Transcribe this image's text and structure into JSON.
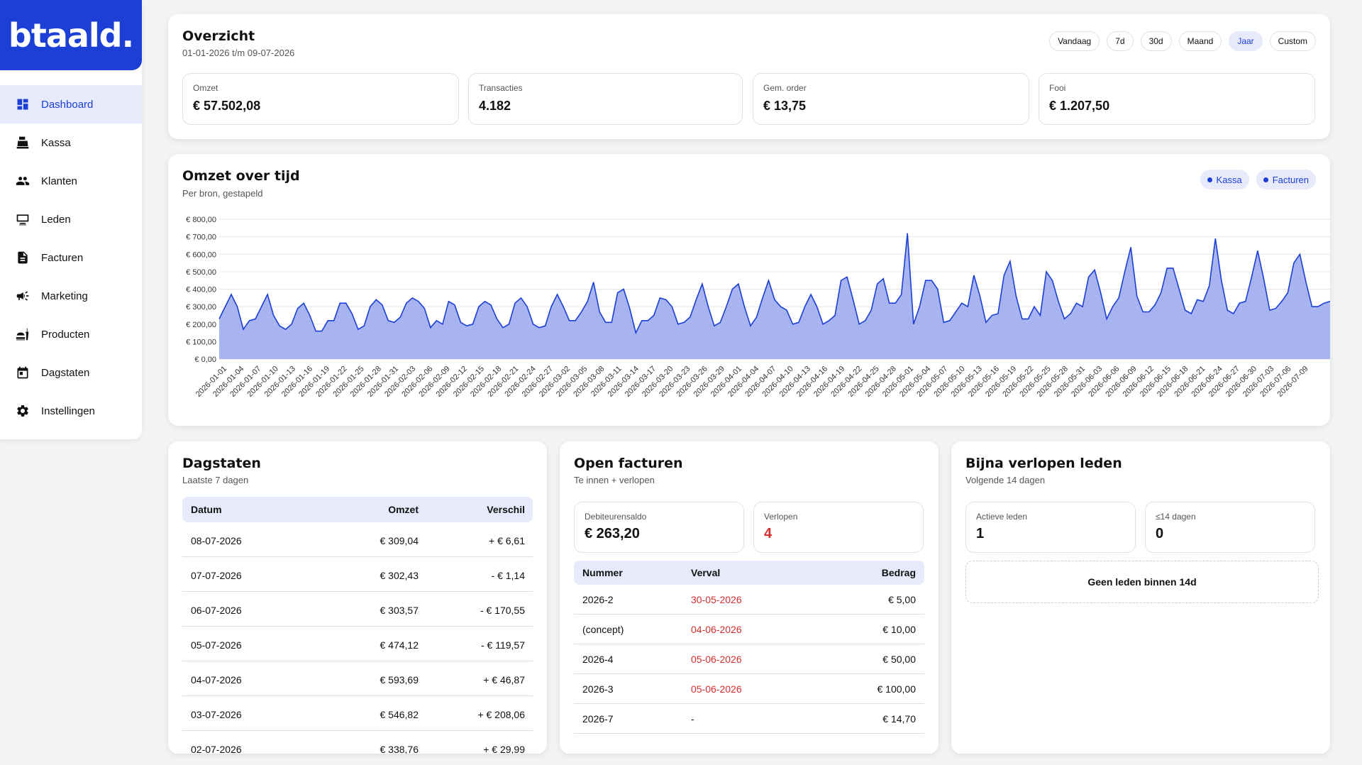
{
  "logo": "btaald.",
  "sidebar": {
    "items": [
      {
        "label": "Dashboard",
        "icon": "dashboard-icon",
        "active": true
      },
      {
        "label": "Kassa",
        "icon": "cash-register-icon"
      },
      {
        "label": "Klanten",
        "icon": "people-icon"
      },
      {
        "label": "Leden",
        "icon": "membership-card-icon"
      },
      {
        "label": "Facturen",
        "icon": "document-icon"
      },
      {
        "label": "Marketing",
        "icon": "megaphone-icon"
      },
      {
        "label": "Producten",
        "icon": "food-icon"
      },
      {
        "label": "Dagstaten",
        "icon": "calendar-icon"
      },
      {
        "label": "Instellingen",
        "icon": "gear-icon"
      }
    ]
  },
  "overview": {
    "title": "Overzicht",
    "range": "01-01-2026 t/m 09-07-2026",
    "periods": [
      "Vandaag",
      "7d",
      "30d",
      "Maand",
      "Jaar",
      "Custom"
    ],
    "active_period": "Jaar",
    "kpis": [
      {
        "label": "Omzet",
        "value": "€ 57.502,08"
      },
      {
        "label": "Transacties",
        "value": "4.182"
      },
      {
        "label": "Gem. order",
        "value": "€ 13,75"
      },
      {
        "label": "Fooi",
        "value": "€ 1.207,50"
      }
    ]
  },
  "revenue_chart": {
    "title": "Omzet over tijd",
    "subtitle": "Per bron, gestapeld",
    "legend": [
      "Kassa",
      "Facturen"
    ],
    "colors": {
      "line": "#1c3fd6",
      "fill": "#a7b4f0"
    }
  },
  "chart_data": {
    "type": "area",
    "stacked": true,
    "ylim": [
      0,
      800
    ],
    "yticks": [
      "€ 800,00",
      "€ 700,00",
      "€ 600,00",
      "€ 500,00",
      "€ 400,00",
      "€ 300,00",
      "€ 200,00",
      "€ 100,00",
      "€ 0,00"
    ],
    "x_labels": [
      "2026-01-01",
      "2026-01-04",
      "2026-01-07",
      "2026-01-10",
      "2026-01-13",
      "2026-01-16",
      "2026-01-19",
      "2026-01-22",
      "2026-01-25",
      "2026-01-28",
      "2026-01-31",
      "2026-02-03",
      "2026-02-06",
      "2026-02-09",
      "2026-02-12",
      "2026-02-15",
      "2026-02-18",
      "2026-02-21",
      "2026-02-24",
      "2026-02-27",
      "2026-03-02",
      "2026-03-05",
      "2026-03-08",
      "2026-03-11",
      "2026-03-14",
      "2026-03-17",
      "2026-03-20",
      "2026-03-23",
      "2026-03-26",
      "2026-03-29",
      "2026-04-01",
      "2026-04-04",
      "2026-04-07",
      "2026-04-10",
      "2026-04-13",
      "2026-04-16",
      "2026-04-19",
      "2026-04-22",
      "2026-04-25",
      "2026-04-28",
      "2026-05-01",
      "2026-05-04",
      "2026-05-07",
      "2026-05-10",
      "2026-05-13",
      "2026-05-16",
      "2026-05-19",
      "2026-05-22",
      "2026-05-25",
      "2026-05-28",
      "2026-05-31",
      "2026-06-03",
      "2026-06-06",
      "2026-06-09",
      "2026-06-12",
      "2026-06-15",
      "2026-06-18",
      "2026-06-21",
      "2026-06-24",
      "2026-06-27",
      "2026-06-30",
      "2026-07-03",
      "2026-07-06",
      "2026-07-09"
    ],
    "series": [
      {
        "name": "Kassa",
        "values": [
          230,
          300,
          370,
          300,
          170,
          220,
          230,
          300,
          370,
          250,
          190,
          170,
          200,
          290,
          320,
          250,
          160,
          160,
          220,
          220,
          320,
          320,
          260,
          170,
          190,
          300,
          340,
          310,
          220,
          210,
          240,
          320,
          350,
          330,
          290,
          180,
          220,
          200,
          330,
          310,
          210,
          190,
          200,
          300,
          330,
          310,
          230,
          180,
          200,
          320,
          350,
          300,
          200,
          180,
          190,
          300,
          370,
          300,
          220,
          220,
          270,
          330,
          440,
          270,
          210,
          210,
          380,
          400,
          290,
          150,
          220,
          220,
          250,
          350,
          340,
          300,
          200,
          210,
          240,
          340,
          430,
          300,
          190,
          210,
          300,
          400,
          430,
          300,
          190,
          240,
          350,
          450,
          340,
          300,
          280,
          200,
          210,
          300,
          370,
          300,
          200,
          220,
          250,
          450,
          470,
          340,
          200,
          220,
          280,
          430,
          460,
          320,
          320,
          370,
          720,
          200,
          300,
          450,
          450,
          400,
          210,
          220,
          270,
          320,
          300,
          480,
          360,
          210,
          250,
          260,
          480,
          560,
          360,
          230,
          230,
          300,
          250,
          500,
          450,
          330,
          230,
          260,
          320,
          300,
          470,
          510,
          380,
          230,
          300,
          350,
          500,
          640,
          360,
          270,
          270,
          310,
          380,
          520,
          520,
          400,
          280,
          260,
          340,
          330,
          420,
          690,
          450,
          280,
          260,
          320,
          330,
          470,
          620,
          460,
          280,
          290,
          330,
          380,
          550,
          600,
          440,
          300,
          300,
          320,
          330
        ]
      },
      {
        "name": "Facturen",
        "values": []
      }
    ]
  },
  "dagstaten": {
    "title": "Dagstaten",
    "subtitle": "Laatste 7 dagen",
    "headers": [
      "Datum",
      "Omzet",
      "Verschil"
    ],
    "rows": [
      [
        "08-07-2026",
        "€ 309,04",
        "+ € 6,61"
      ],
      [
        "07-07-2026",
        "€ 302,43",
        "- € 1,14"
      ],
      [
        "06-07-2026",
        "€ 303,57",
        "- € 170,55"
      ],
      [
        "05-07-2026",
        "€ 474,12",
        "- € 119,57"
      ],
      [
        "04-07-2026",
        "€ 593,69",
        "+ € 46,87"
      ],
      [
        "03-07-2026",
        "€ 546,82",
        "+ € 208,06"
      ],
      [
        "02-07-2026",
        "€ 338,76",
        "+ € 29,99"
      ]
    ]
  },
  "open_invoices": {
    "title": "Open facturen",
    "subtitle": "Te innen + verlopen",
    "debt_label": "Debiteurensaldo",
    "debt_value": "€ 263,20",
    "overdue_label": "Verlopen",
    "overdue_value": "4",
    "headers": [
      "Nummer",
      "Verval",
      "Bedrag"
    ],
    "rows": [
      {
        "nummer": "2026-2",
        "verval": "30-05-2026",
        "bedrag": "€ 5,00",
        "overdue": true
      },
      {
        "nummer": "(concept)",
        "verval": "04-06-2026",
        "bedrag": "€ 10,00",
        "overdue": true
      },
      {
        "nummer": "2026-4",
        "verval": "05-06-2026",
        "bedrag": "€ 50,00",
        "overdue": true
      },
      {
        "nummer": "2026-3",
        "verval": "05-06-2026",
        "bedrag": "€ 100,00",
        "overdue": true
      },
      {
        "nummer": "2026-7",
        "verval": "-",
        "bedrag": "€ 14,70",
        "overdue": false
      }
    ]
  },
  "expiring_members": {
    "title": "Bijna verlopen leden",
    "subtitle": "Volgende 14 dagen",
    "active_label": "Actieve leden",
    "active_value": "1",
    "soon_label": "≤14 dagen",
    "soon_value": "0",
    "empty_text": "Geen leden binnen 14d"
  }
}
